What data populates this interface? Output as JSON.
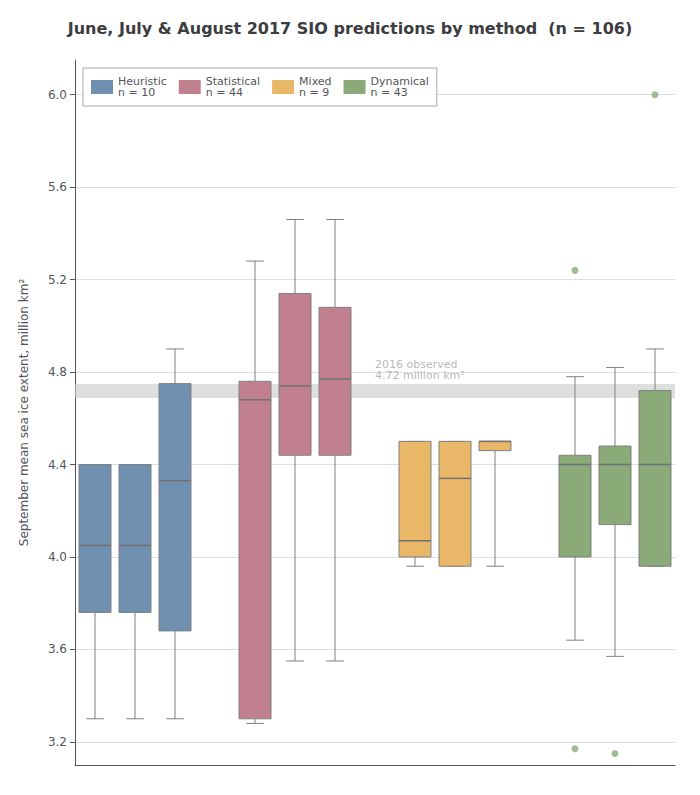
{
  "chart_data": {
    "type": "boxplot",
    "title": "June, July & August 2017 SIO predictions by method  (n = 106)",
    "ylabel": "September mean sea ice extent, million km²",
    "ylim": [
      3.1,
      6.15
    ],
    "yticks": [
      3.2,
      3.6,
      {
        "value": 4,
        "label": "4.0"
      },
      4.4,
      4.8,
      5.2,
      5.6,
      {
        "value": 6,
        "label": "6.0"
      }
    ],
    "grid": true,
    "legend": "upper left",
    "tick_labels": "y",
    "annotations": [
      {
        "text": "2016 observed\n4.72 million km²",
        "y": 4.72
      }
    ],
    "series": [
      {
        "name": "Heuristic\nn = 10",
        "color": "#7090b0",
        "values": [
          {
            "whislo": 3.3,
            "q1": 3.76,
            "med": 4.05,
            "q3": 4.4,
            "whishi": 4.4,
            "fliers": []
          },
          {
            "whislo": 3.3,
            "q1": 3.76,
            "med": 4.05,
            "q3": 4.4,
            "whishi": 4.4,
            "fliers": []
          },
          {
            "whislo": 3.3,
            "q1": 3.68,
            "med": 4.33,
            "q3": 4.75,
            "whishi": 4.9,
            "fliers": []
          }
        ]
      },
      {
        "name": "Statistical\nn = 44",
        "color": "#c08090",
        "values": [
          {
            "whislo": 3.28,
            "q1": 3.3,
            "med": 4.68,
            "q3": 4.76,
            "whishi": 5.28,
            "fliers": []
          },
          {
            "whislo": 3.55,
            "q1": 4.44,
            "med": 4.74,
            "q3": 5.14,
            "whishi": 5.46,
            "fliers": []
          },
          {
            "whislo": 3.55,
            "q1": 4.44,
            "med": 4.77,
            "q3": 5.08,
            "whishi": 5.46,
            "fliers": []
          }
        ]
      },
      {
        "name": "Mixed\nn = 9",
        "color": "#e8b868",
        "values": [
          {
            "whislo": 3.96,
            "q1": 4.0,
            "med": 4.07,
            "q3": 4.5,
            "whishi": 4.5,
            "fliers": []
          },
          {
            "whislo": 3.96,
            "q1": 3.96,
            "med": 4.34,
            "q3": 4.5,
            "whishi": 4.5,
            "fliers": []
          },
          {
            "whislo": 3.96,
            "q1": 4.46,
            "med": 4.5,
            "q3": 4.5,
            "whishi": 4.5,
            "fliers": []
          }
        ]
      },
      {
        "name": "Dynamical\nn = 43",
        "color": "#8aaa78",
        "values": [
          {
            "whislo": 3.64,
            "q1": 4.0,
            "med": 4.4,
            "q3": 4.44,
            "whishi": 4.78,
            "fliers": [
              3.17,
              5.24
            ]
          },
          {
            "whislo": 3.57,
            "q1": 4.14,
            "med": 4.4,
            "q3": 4.48,
            "whishi": 4.82,
            "fliers": [
              3.15
            ]
          },
          {
            "whislo": 3.96,
            "q1": 3.96,
            "med": 4.4,
            "q3": 4.72,
            "whishi": 4.9,
            "fliers": [
              6.0
            ]
          }
        ]
      }
    ]
  }
}
